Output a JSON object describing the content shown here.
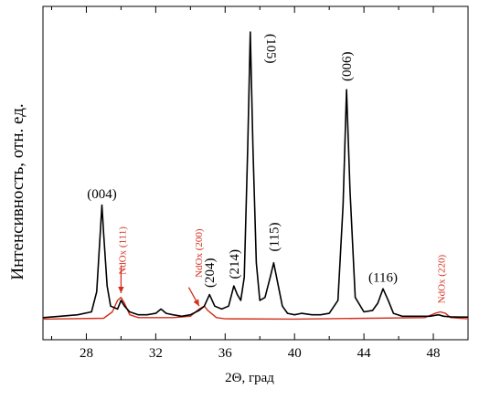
{
  "chart_data": {
    "type": "line",
    "xlabel": "2Θ, град",
    "ylabel": "Интенсивность, отн. ед.",
    "xlim": [
      25.5,
      50
    ],
    "ylim": [
      0,
      100
    ],
    "x_ticks": [
      "28",
      "32",
      "36",
      "40",
      "44",
      "48"
    ],
    "grid": false,
    "series": [
      {
        "color": "#000000",
        "x": [
          25.5,
          26.5,
          27.5,
          28.3,
          28.6,
          28.8,
          28.9,
          29.0,
          29.2,
          29.4,
          29.8,
          30.0,
          30.2,
          30.5,
          31.0,
          31.5,
          32.0,
          32.3,
          32.6,
          33.0,
          33.5,
          34.0,
          34.5,
          34.8,
          35.1,
          35.4,
          35.8,
          36.2,
          36.5,
          36.7,
          36.9,
          37.1,
          37.3,
          37.45,
          37.6,
          37.8,
          38.0,
          38.3,
          38.6,
          38.8,
          39.0,
          39.3,
          39.6,
          40.0,
          40.4,
          41.0,
          41.5,
          42.0,
          42.5,
          42.8,
          43.0,
          43.2,
          43.5,
          44.0,
          44.5,
          44.8,
          45.1,
          45.4,
          45.7,
          46.2,
          46.7,
          47.2,
          47.8,
          48.3,
          48.6,
          49.0,
          49.5,
          50.0
        ],
        "y": [
          1,
          1.5,
          2,
          3,
          10,
          30,
          40,
          30,
          12,
          5,
          4,
          7,
          5,
          3,
          2,
          2,
          2.5,
          4,
          2.5,
          2,
          1.5,
          2,
          3.5,
          5,
          9,
          5,
          4,
          5,
          12,
          9,
          7,
          15,
          60,
          100,
          60,
          20,
          7,
          8,
          15,
          20,
          14,
          5,
          2.5,
          2,
          2.5,
          2,
          2,
          2.5,
          7,
          40,
          80,
          45,
          8,
          3,
          3.5,
          6,
          11,
          7,
          2.5,
          1.5,
          1.5,
          1.5,
          1.5,
          2,
          1.5,
          1.3,
          1.2,
          1.2
        ]
      },
      {
        "color": "#d32f1e",
        "x": [
          25.5,
          29.0,
          29.5,
          29.8,
          30.0,
          30.2,
          30.5,
          31.0,
          33.0,
          34.0,
          34.5,
          34.8,
          35.0,
          35.5,
          36.0,
          40.0,
          47.5,
          48.1,
          48.4,
          48.7,
          49.0,
          50.0
        ],
        "y": [
          0.5,
          0.8,
          3,
          7,
          8,
          6,
          2,
          1,
          1,
          1.5,
          4,
          5,
          3.5,
          1,
          0.6,
          0.5,
          1,
          2.5,
          3,
          2.5,
          1,
          0.6
        ]
      }
    ],
    "annotations": [
      {
        "text": "(004)",
        "x": 28.9,
        "y": 40.5,
        "color": "#000000",
        "rotate": 0
      },
      {
        "text": "(105)",
        "x": 37.45,
        "y": 100,
        "color": "#000000",
        "rotate": 90
      },
      {
        "text": "(115)",
        "x": 38.8,
        "y": 22,
        "color": "#000000",
        "rotate": -90
      },
      {
        "text": "(214)",
        "x": 36.5,
        "y": 12.5,
        "color": "#000000",
        "rotate": -90
      },
      {
        "text": "(204)",
        "x": 35.1,
        "y": 9.5,
        "color": "#000000",
        "rotate": -90
      },
      {
        "text": "(006)",
        "x": 43.0,
        "y": 81,
        "color": "#000000",
        "rotate": -90
      },
      {
        "text": "(116)",
        "x": 45.1,
        "y": 11.5,
        "color": "#000000",
        "rotate": 0
      },
      {
        "text": "NdOx (111)",
        "x": 30.0,
        "y": 14,
        "color": "#d32f1e",
        "rotate": -90
      },
      {
        "text": "NdOx (200)",
        "x": 34.4,
        "y": 13,
        "color": "#d32f1e",
        "rotate": -90
      },
      {
        "text": "NdOx (220)",
        "x": 48.4,
        "y": 4,
        "color": "#d32f1e",
        "rotate": -90
      }
    ],
    "arrows": [
      {
        "color": "#d32f1e",
        "from": [
          30.0,
          19
        ],
        "to": [
          30.0,
          9.5
        ]
      },
      {
        "color": "#d32f1e",
        "from": [
          33.9,
          11.5
        ],
        "to": [
          34.5,
          5
        ]
      }
    ]
  }
}
